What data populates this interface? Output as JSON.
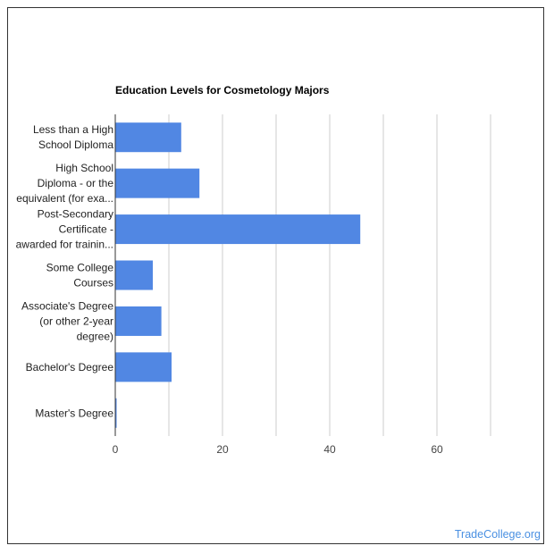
{
  "chart_data": {
    "type": "bar",
    "orientation": "horizontal",
    "title": "Education Levels for Cosmetology Majors",
    "xlabel": "",
    "ylabel": "",
    "categories": [
      [
        "Less than a High",
        "School Diploma"
      ],
      [
        "High School",
        "Diploma - or the",
        "equivalent (for exa..."
      ],
      [
        "Post-Secondary",
        "Certificate -",
        "awarded for trainin..."
      ],
      [
        "Some College",
        "Courses"
      ],
      [
        "Associate's Degree",
        "(or other 2-year",
        "degree)"
      ],
      [
        "Bachelor's Degree"
      ],
      [
        "Master's Degree"
      ]
    ],
    "values": [
      12.3,
      15.7,
      45.7,
      7.0,
      8.6,
      10.5,
      0.2
    ],
    "xlim": [
      0,
      70
    ],
    "xticks": [
      0,
      20,
      40,
      60
    ],
    "grid": true,
    "bar_color": "#5187e3"
  },
  "watermark": "TradeCollege.org"
}
